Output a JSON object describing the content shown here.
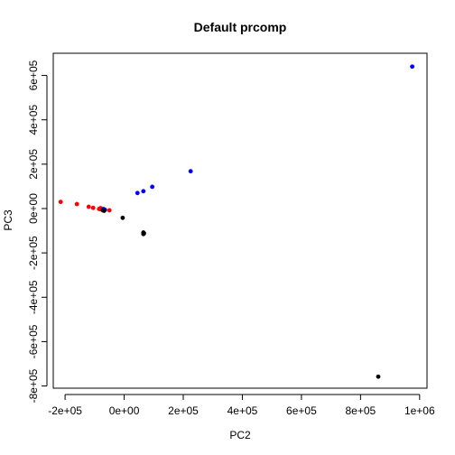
{
  "chart_data": {
    "type": "scatter",
    "title": "Default prcomp",
    "xlabel": "PC2",
    "ylabel": "PC3",
    "xlim": [
      -240000,
      1025000
    ],
    "ylim": [
      -810000,
      700000
    ],
    "xticks": [
      {
        "value": -200000,
        "label": "-2e+05"
      },
      {
        "value": 0,
        "label": "0e+00"
      },
      {
        "value": 200000,
        "label": "2e+05"
      },
      {
        "value": 400000,
        "label": "4e+05"
      },
      {
        "value": 600000,
        "label": "6e+05"
      },
      {
        "value": 800000,
        "label": "8e+05"
      },
      {
        "value": 1000000,
        "label": "1e+06"
      }
    ],
    "yticks": [
      {
        "value": -800000,
        "label": "-8e+05"
      },
      {
        "value": -600000,
        "label": "-6e+05"
      },
      {
        "value": -400000,
        "label": "-4e+05"
      },
      {
        "value": -200000,
        "label": "-2e+05"
      },
      {
        "value": 0,
        "label": "0e+00"
      },
      {
        "value": 200000,
        "label": "2e+05"
      },
      {
        "value": 400000,
        "label": "4e+05"
      },
      {
        "value": 600000,
        "label": "6e+05"
      }
    ],
    "grid": false,
    "legend": "none",
    "series": [
      {
        "color": "#ff0000",
        "points": [
          [
            -215000,
            30000
          ],
          [
            -160000,
            20000
          ],
          [
            -120000,
            8000
          ],
          [
            -105000,
            3000
          ],
          [
            -85000,
            -2000
          ],
          [
            -80000,
            2000
          ],
          [
            -78000,
            -4000
          ],
          [
            -72000,
            -6000
          ],
          [
            -50000,
            -8000
          ]
        ]
      },
      {
        "color": "#0000ff",
        "points": [
          [
            45000,
            70000
          ],
          [
            65000,
            78000
          ],
          [
            95000,
            98000
          ],
          [
            225000,
            168000
          ],
          [
            975000,
            640000
          ],
          [
            -70000,
            -2000
          ],
          [
            -65000,
            -6000
          ]
        ]
      },
      {
        "color": "#000000",
        "points": [
          [
            -72000,
            -8000
          ],
          [
            -68000,
            -10000
          ],
          [
            -5000,
            -42000
          ],
          [
            65000,
            -108000
          ],
          [
            65000,
            -115000
          ],
          [
            67000,
            -112000
          ],
          [
            860000,
            -758000
          ]
        ]
      }
    ]
  }
}
